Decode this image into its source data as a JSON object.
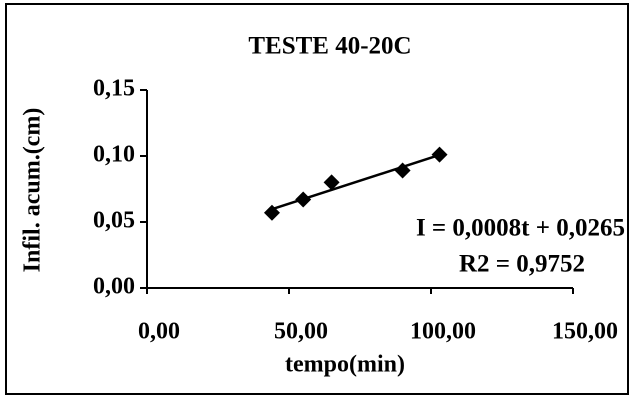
{
  "chart_data": {
    "type": "scatter",
    "title": "TESTE 40-20C",
    "x_label": "tempo(min)",
    "y_label": "Infil. acum.(cm)",
    "annotations": [
      "I = 0,0008t + 0,0265",
      "R2 = 0,9752"
    ],
    "series": [
      {
        "name": "Infil. acum.(cm)",
        "color": "#000000",
        "x": [
          44,
          55,
          65,
          90,
          103
        ],
        "values": [
          0.057,
          0.067,
          0.08,
          0.089,
          0.101
        ]
      }
    ],
    "trendline": "linear",
    "xlim": [
      0,
      150
    ],
    "xticks": [
      {
        "value": 0,
        "label": "0,00"
      },
      {
        "value": 50,
        "label": "50,00"
      },
      {
        "value": 100,
        "label": "100,00"
      },
      {
        "value": 150,
        "label": "150,00"
      }
    ],
    "ylim": [
      0,
      0.15
    ],
    "yticks": [
      {
        "value": 0,
        "label": "0,00"
      },
      {
        "value": 0.05,
        "label": "0,05"
      },
      {
        "value": 0.1,
        "label": "0,10"
      },
      {
        "value": 0.15,
        "label": "0,15"
      }
    ],
    "grid": false
  }
}
